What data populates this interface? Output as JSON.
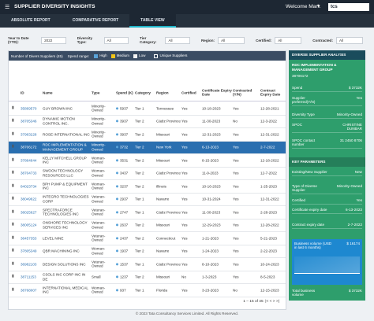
{
  "header": {
    "title": "SUPPLIER DIVERSITY INSIGHTS",
    "welcome": "Welcome Mark",
    "logo": "tcs"
  },
  "tabs": [
    "ABSOLUTE REPORT",
    "COMPARATIVE REPORT",
    "TABLE VIEW"
  ],
  "filters": [
    {
      "label": "Year to Date (YTD):",
      "value": "2022"
    },
    {
      "label": "Diversity Type:",
      "value": "All"
    },
    {
      "label": "Tier Category:",
      "value": "All"
    },
    {
      "label": "Region:",
      "value": "All"
    },
    {
      "label": "Certified:",
      "value": "All"
    },
    {
      "label": "Contracted:",
      "value": "All"
    }
  ],
  "toolbar": {
    "count": "Number of Divers Suppliers (45)",
    "spend_range": "Spend range:",
    "levels": [
      "High",
      "Medium",
      "Low"
    ],
    "unique": "Unique Suppliers"
  },
  "table": {
    "columns": [
      "ID",
      "Name",
      "Type",
      "Spend (K)",
      "Category",
      "Region",
      "Certified",
      "Certificate Expiry Date",
      "Contracted (Y/N)",
      "Contract Expiry Date"
    ],
    "selected": 3,
    "rows": [
      [
        "35869570",
        "GUY BROWN INC",
        "Minority-Owned",
        5937,
        "Tier 1",
        "Tennessee",
        "Yes",
        "10-18-2023",
        "Yes",
        "12-28-2021"
      ],
      [
        "38705346",
        "DYNAMIC MOTION CONTROL INC.",
        "Minority-Owned",
        3937,
        "Tier 2",
        "Cádiz Province",
        "Yes",
        "11-30-2023",
        "No",
        "12-3-2022"
      ],
      [
        "37963228",
        "ROSE INTERNATIONAL INC",
        "Minority-Owned",
        3937,
        "Tier 2",
        "Missouri",
        "Yes",
        "12-31-2023",
        "Yes",
        "12-31-2022"
      ],
      [
        "38706172",
        "RDC IMPLEMENTATION & MANAGEMENT GROUP",
        "Minority-Owned",
        3732,
        "Tier 2",
        "New York",
        "Yes",
        "6-13-2023",
        "Yes",
        "2-7-2022"
      ],
      [
        "37864644",
        "KELLY MITCHELL GROUP INC",
        "Woman-Owned",
        3531,
        "Tier 2",
        "Missouri",
        "Yes",
        "8-15-2023",
        "Yes",
        "12-18-2022"
      ],
      [
        "38704733",
        "SWOON TECHNOLOGY RESOURCES LLC",
        "Woman-Owned",
        3437,
        "Tier 2",
        "Cádiz Province",
        "Yes",
        "11-9-2023",
        "Yes",
        "12-7-2022"
      ],
      [
        "84023734",
        "BPH PUMP & EQUIPMENT INC",
        "Woman-Owned",
        3237,
        "Tier 2",
        "Illinois",
        "Yes",
        "10-16-2023",
        "Yes",
        "1-25-2023"
      ],
      [
        "38049622",
        "INTEGRO TECHNOLOGIES CORP",
        "Veteran-Owned",
        2937,
        "Tier 1",
        "Navarre",
        "Yes",
        "10-31-2024",
        "Yes",
        "12-31-2022"
      ],
      [
        "38025627",
        "SPECTRAFORCE TECHNOLOGIES INC",
        "Veteran-Owned",
        2747,
        "Tier 1",
        "Cádiz Province",
        "Yes",
        "11-30-2023",
        "Yes",
        "2-28-2023"
      ],
      [
        "38005124",
        "ONSHORE TECHNOLOGY SERVICES INC",
        "Veteran-Owned",
        2637,
        "Tier 2",
        "Missouri",
        "Yes",
        "12-29-2023",
        "Yes",
        "12-28-2022"
      ],
      [
        "38457353",
        "LEVEL NINE",
        "Veteran-Owned",
        2437,
        "Tier 2",
        "Connecticut",
        "Yes",
        "1-21-2023",
        "Yes",
        "5-21-2023"
      ],
      [
        "37805349",
        "QBR MACHINING INC",
        "Woman-Owned",
        1937,
        "Tier 2",
        "Navarre",
        "Yes",
        "1-24-2023",
        "Yes",
        "2-22-2023"
      ],
      [
        "36982103",
        "DESIGN SOLUTIONS INC",
        "Veteran-Owned",
        1537,
        "Tier 1",
        "Cádiz Province",
        "Yes",
        "8-10-2023",
        "Yes",
        "10-24-2023"
      ],
      [
        "38711153",
        "CSOLS INC CORP INC IN DE",
        "Small",
        1237,
        "Tier 2",
        "Missouri",
        "No",
        "1-3-2023",
        "Yes",
        "8-5-2023"
      ],
      [
        "38768007",
        "INTERNATIONAL MEDICAL INC",
        "Woman-Owned",
        937,
        "Tier 1",
        "Florida",
        "Yes",
        "3-23-2023",
        "No",
        "12-15-2023"
      ]
    ],
    "pagination": "1 – 15 of 45"
  },
  "panel": {
    "title": "DIVERSE SUPPLIER ANALYSIS",
    "supplier": "RDC IMPLEMENTATION & MANAGEMENT GROUP",
    "id": "38706172",
    "details": [
      [
        "Spend",
        "$ 3732K"
      ],
      [
        "Supplier preferred(Y/N)",
        "Yes"
      ],
      [
        "Diversity Type",
        "Minority-Owned"
      ],
      [
        "SPOC",
        "CHRISTINE DUNBAR"
      ],
      [
        "SPOC contact number",
        "31 2450 8706"
      ]
    ],
    "key_title": "KEY PARAMETERS",
    "params": [
      [
        "Existing/New Supplier",
        "New"
      ],
      [
        "Type of Diverse Supplier",
        "Minority-Owned"
      ],
      [
        "Certified",
        "Yes"
      ],
      [
        "Certificate expiry date",
        "6-13-2023"
      ],
      [
        "Contract expiry date",
        "2-7-2022"
      ]
    ],
    "volume_label": "Business volume (USD in last 6 months)",
    "volume_value": "$ 16174",
    "total_label": "Total business volume",
    "total_value": "$ 3732K"
  },
  "footer": "© 2023 Tata Consultancy Services Limited. All Rights Reserved."
}
